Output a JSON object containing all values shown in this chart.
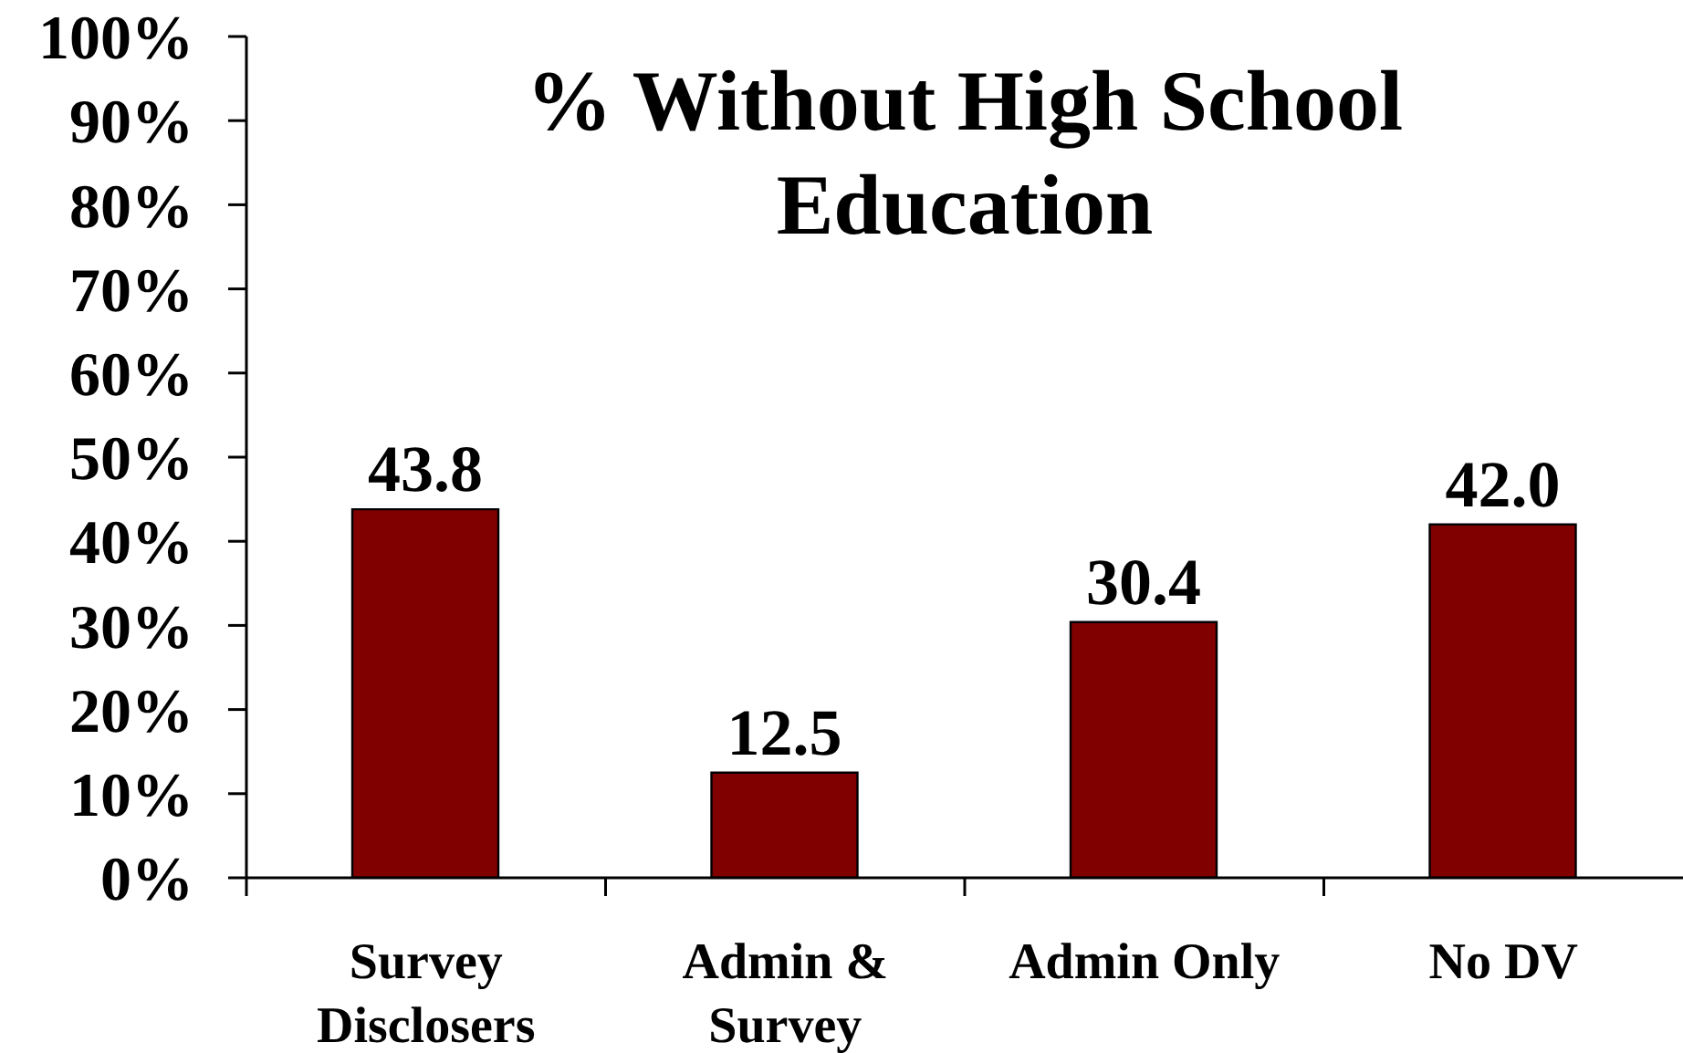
{
  "chart_data": {
    "type": "bar",
    "title": "% Without High School Education",
    "categories": [
      "Survey Disclosers",
      "Admin & Survey",
      "Admin Only",
      "No DV"
    ],
    "values": [
      43.8,
      12.5,
      30.4,
      42.0
    ],
    "value_labels": [
      "43.8",
      "12.5",
      "30.4",
      "42.0"
    ],
    "color": "#800000",
    "ylim": [
      0,
      100
    ],
    "yticks": [
      {
        "value": 0,
        "label": "0%"
      },
      {
        "value": 10,
        "label": "10%"
      },
      {
        "value": 20,
        "label": "20%"
      },
      {
        "value": 30,
        "label": "30%"
      },
      {
        "value": 40,
        "label": "40%"
      },
      {
        "value": 50,
        "label": "50%"
      },
      {
        "value": 60,
        "label": "60%"
      },
      {
        "value": 70,
        "label": "70%"
      },
      {
        "value": 80,
        "label": "80%"
      },
      {
        "value": 90,
        "label": "90%"
      },
      {
        "value": 100,
        "label": "100%"
      }
    ]
  }
}
